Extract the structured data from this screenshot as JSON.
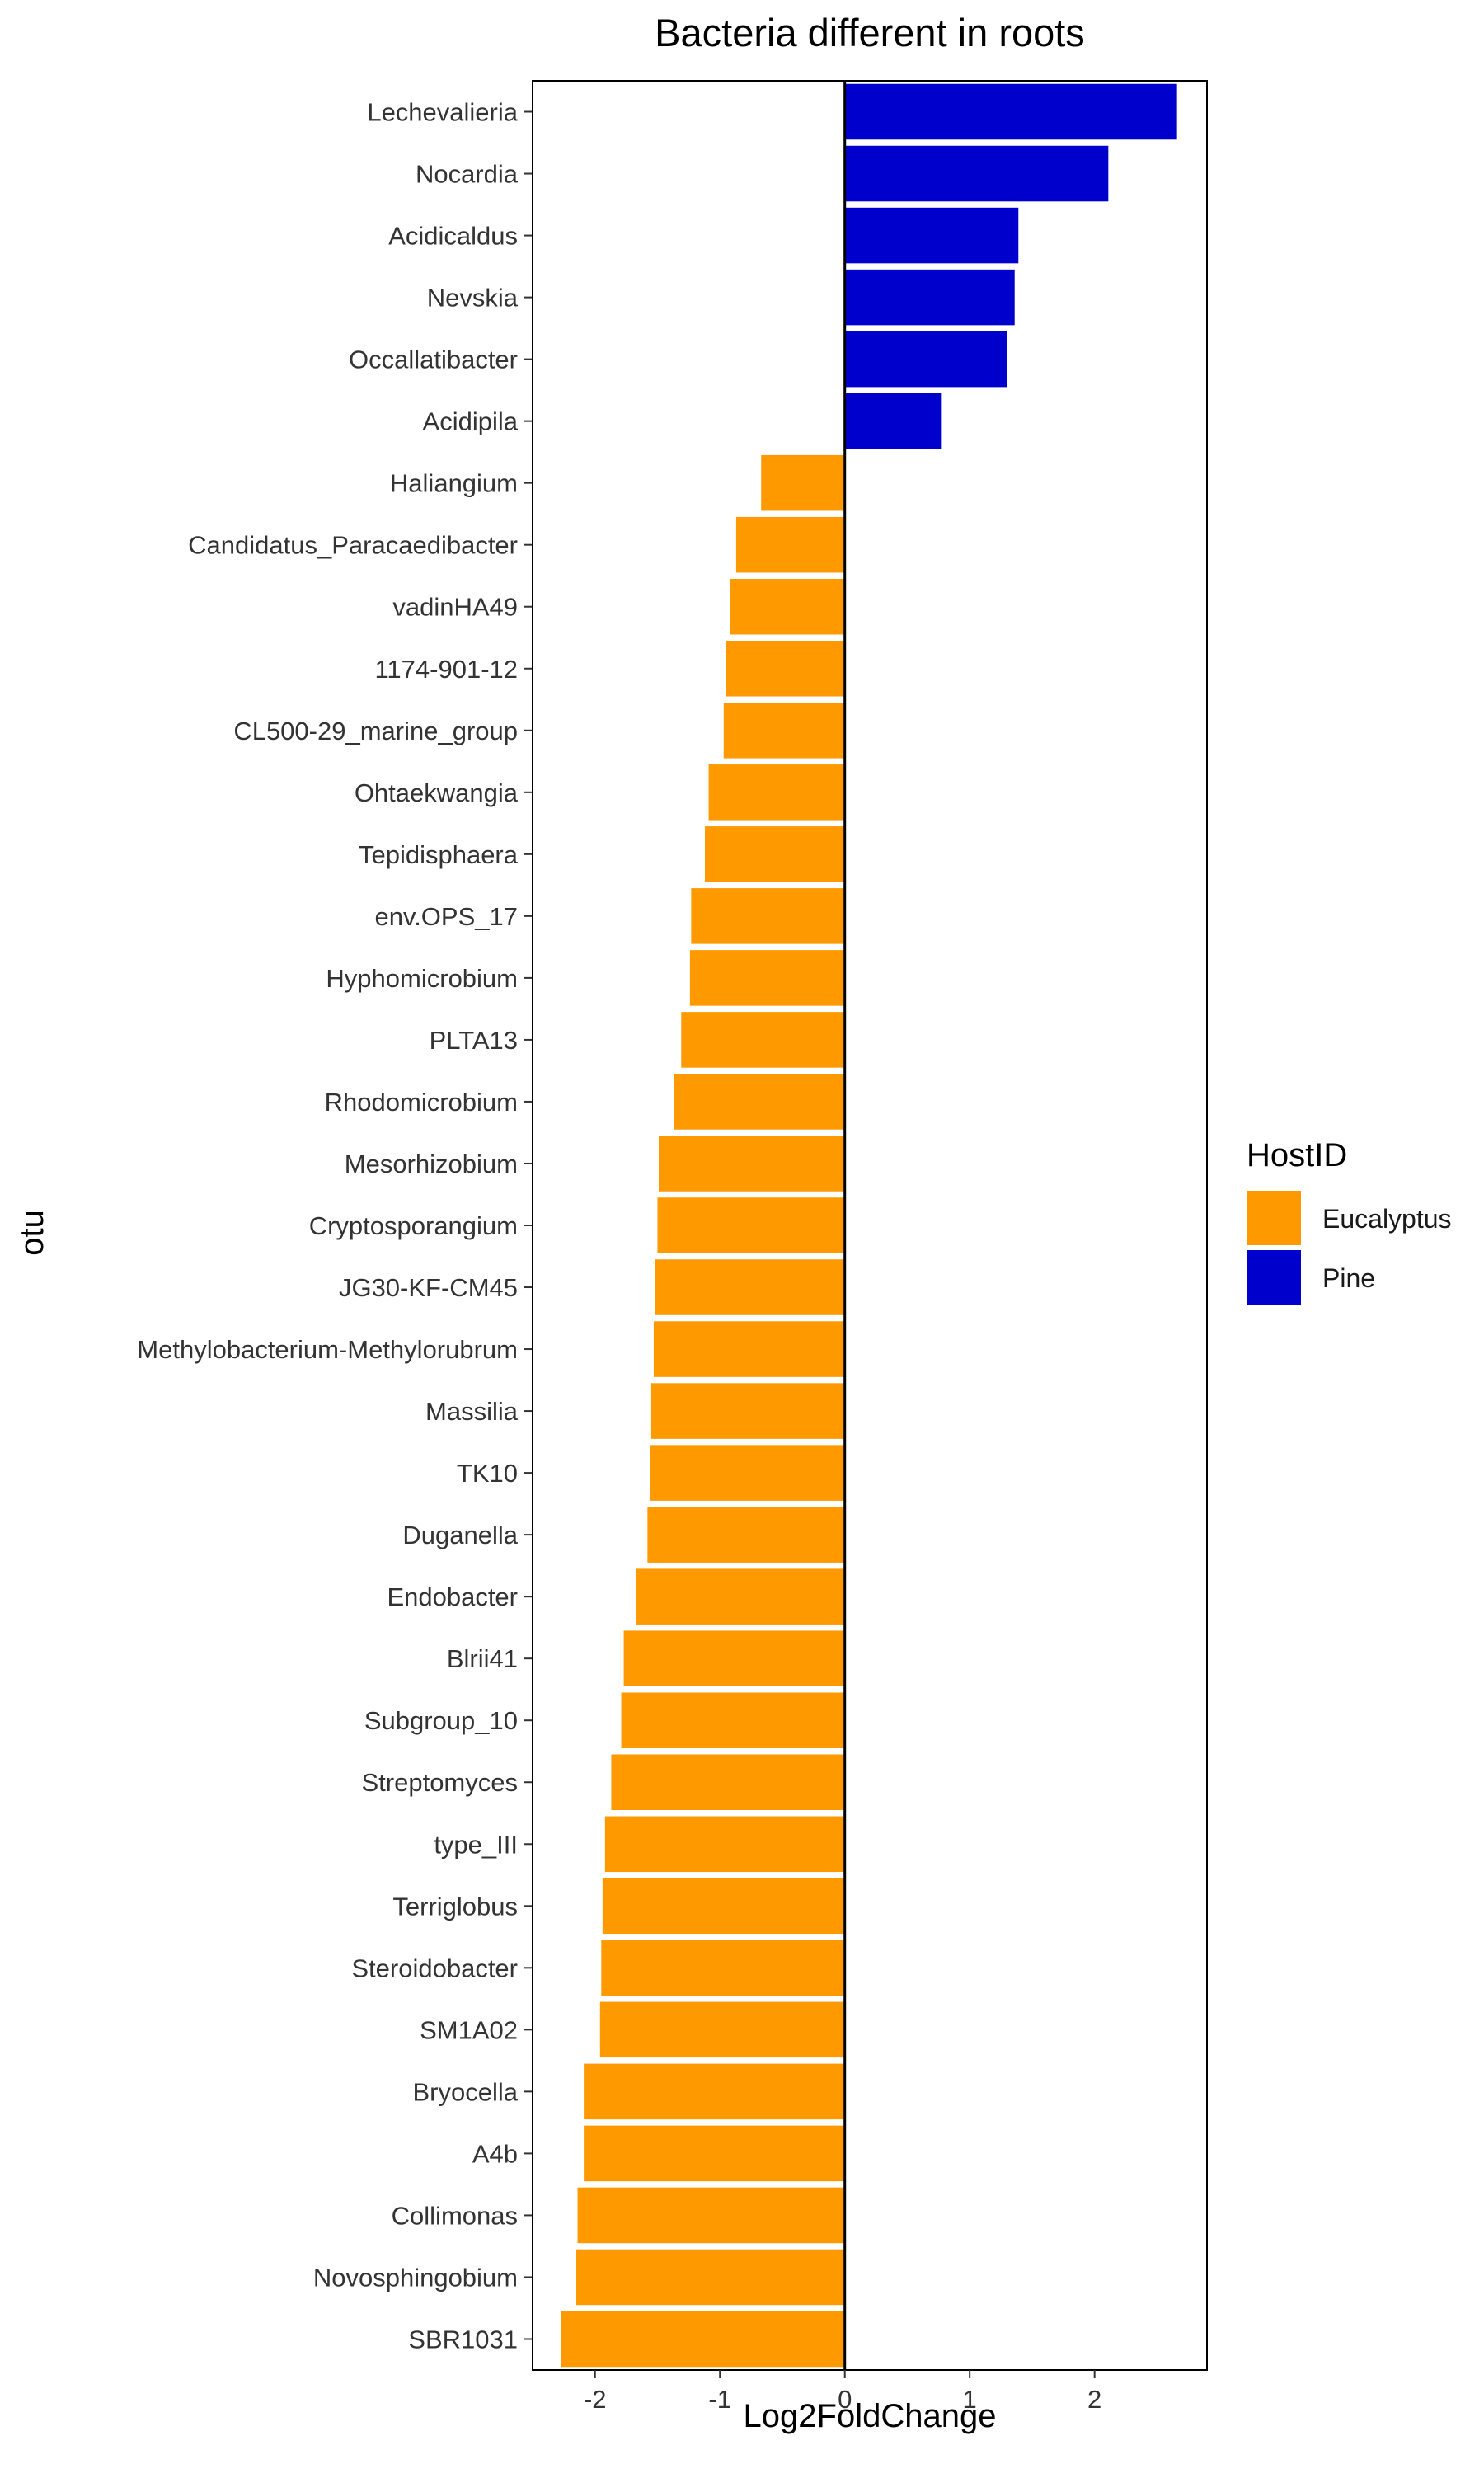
{
  "chart_data": {
    "type": "bar",
    "orientation": "horizontal",
    "title": "Bacteria different in roots",
    "xlabel": "Log2FoldChange",
    "ylabel": "otu",
    "xlim": [
      -2.5,
      2.9
    ],
    "xticks": [
      -2,
      -1,
      0,
      1,
      2
    ],
    "grid": false,
    "legend": {
      "title": "HostID",
      "position": "right",
      "entries": [
        {
          "label": "Eucalyptus",
          "color": "#FF9900"
        },
        {
          "label": "Pine",
          "color": "#0000CC"
        }
      ]
    },
    "categories": [
      "Lechevalieria",
      "Nocardia",
      "Acidicaldus",
      "Nevskia",
      "Occallatibacter",
      "Acidipila",
      "Haliangium",
      "Candidatus_Paracaedibacter",
      "vadinHA49",
      "1174-901-12",
      "CL500-29_marine_group",
      "Ohtaekwangia",
      "Tepidisphaera",
      "env.OPS_17",
      "Hyphomicrobium",
      "PLTA13",
      "Rhodomicrobium",
      "Mesorhizobium",
      "Cryptosporangium",
      "JG30-KF-CM45",
      "Methylobacterium-Methylorubrum",
      "Massilia",
      "TK10",
      "Duganella",
      "Endobacter",
      "Blrii41",
      "Subgroup_10",
      "Streptomyces",
      "type_III",
      "Terriglobus",
      "Steroidobacter",
      "SM1A02",
      "Bryocella",
      "A4b",
      "Collimonas",
      "Novosphingobium",
      "SBR1031"
    ],
    "values": [
      2.66,
      2.11,
      1.39,
      1.36,
      1.3,
      0.77,
      -0.67,
      -0.87,
      -0.92,
      -0.95,
      -0.97,
      -1.09,
      -1.12,
      -1.23,
      -1.24,
      -1.31,
      -1.37,
      -1.49,
      -1.5,
      -1.52,
      -1.53,
      -1.55,
      -1.56,
      -1.58,
      -1.67,
      -1.77,
      -1.79,
      -1.87,
      -1.92,
      -1.94,
      -1.95,
      -1.96,
      -2.09,
      -2.09,
      -2.14,
      -2.15,
      -2.27
    ],
    "groups": [
      "Pine",
      "Pine",
      "Pine",
      "Pine",
      "Pine",
      "Pine",
      "Eucalyptus",
      "Eucalyptus",
      "Eucalyptus",
      "Eucalyptus",
      "Eucalyptus",
      "Eucalyptus",
      "Eucalyptus",
      "Eucalyptus",
      "Eucalyptus",
      "Eucalyptus",
      "Eucalyptus",
      "Eucalyptus",
      "Eucalyptus",
      "Eucalyptus",
      "Eucalyptus",
      "Eucalyptus",
      "Eucalyptus",
      "Eucalyptus",
      "Eucalyptus",
      "Eucalyptus",
      "Eucalyptus",
      "Eucalyptus",
      "Eucalyptus",
      "Eucalyptus",
      "Eucalyptus",
      "Eucalyptus",
      "Eucalyptus",
      "Eucalyptus",
      "Eucalyptus",
      "Eucalyptus",
      "Eucalyptus"
    ]
  }
}
